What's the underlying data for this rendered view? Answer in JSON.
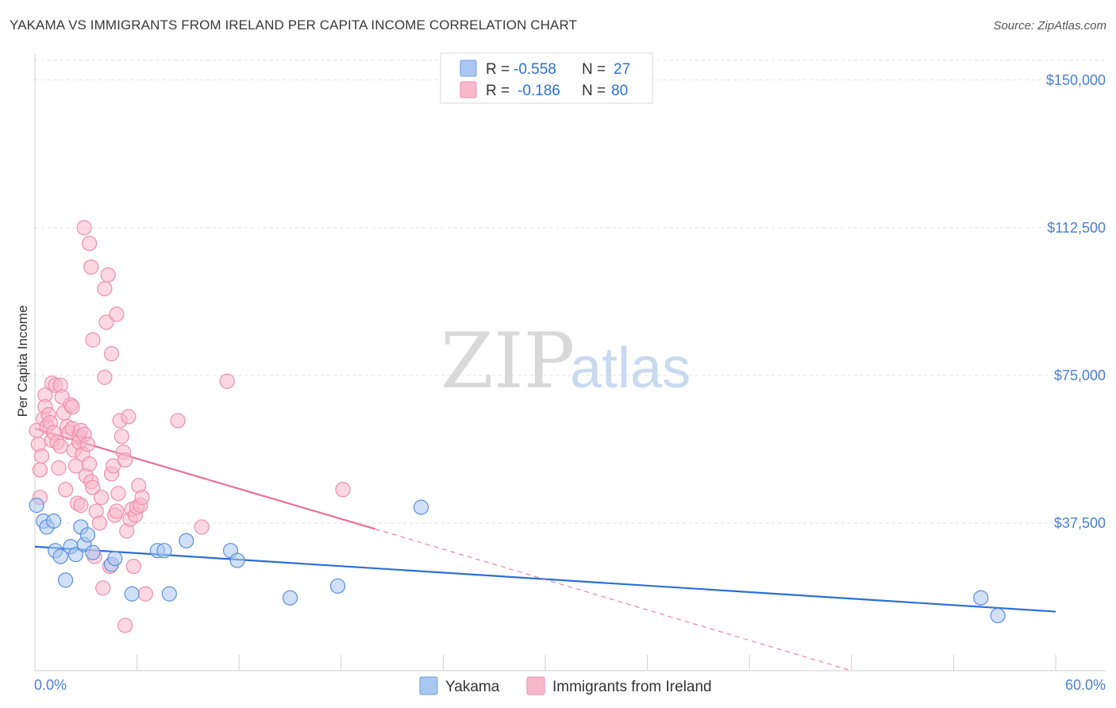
{
  "header": {
    "title": "YAKAMA VS IMMIGRANTS FROM IRELAND PER CAPITA INCOME CORRELATION CHART",
    "source": "Source: ZipAtlas.com"
  },
  "watermark": {
    "zip": "ZIP",
    "atlas": "atlas"
  },
  "legend": {
    "r_label": "R =",
    "n_label": "N =",
    "rows": [
      {
        "r": "-0.558",
        "n": "27",
        "color": "#a9c7f0",
        "stroke": "#6f9fe0"
      },
      {
        "r": "-0.186",
        "n": "80",
        "color": "#f7b8cb",
        "stroke": "#ee8fad"
      }
    ]
  },
  "chart_data": {
    "type": "scatter",
    "title": "YAKAMA VS IMMIGRANTS FROM IRELAND PER CAPITA INCOME CORRELATION CHART",
    "xlabel": "",
    "ylabel": "Per Capita Income",
    "xlim": [
      0,
      60
    ],
    "ylim": [
      0,
      155000
    ],
    "x_tick_labels": {
      "min": "0.0%",
      "max": "60.0%"
    },
    "y_ticks": [
      {
        "value": 37500,
        "label": "$37,500"
      },
      {
        "value": 75000,
        "label": "$75,000"
      },
      {
        "value": 112500,
        "label": "$112,500"
      },
      {
        "value": 150000,
        "label": "$150,000"
      }
    ],
    "grid": true,
    "series": [
      {
        "name": "Yakama",
        "color": "#a9c7f0",
        "stroke": "#5b8fdc",
        "line_color": "#2b6fd6",
        "trend": {
          "x0": 0,
          "y0": 31500,
          "x1": 60,
          "y1": 15000
        },
        "points": [
          [
            0.1,
            42000
          ],
          [
            0.5,
            38000
          ],
          [
            0.7,
            36500
          ],
          [
            1.1,
            38000
          ],
          [
            1.2,
            30500
          ],
          [
            1.5,
            29000
          ],
          [
            1.8,
            23000
          ],
          [
            2.1,
            31500
          ],
          [
            2.4,
            29500
          ],
          [
            2.7,
            36500
          ],
          [
            2.9,
            32000
          ],
          [
            3.1,
            34500
          ],
          [
            3.4,
            30000
          ],
          [
            4.5,
            27000
          ],
          [
            4.7,
            28500
          ],
          [
            5.7,
            19500
          ],
          [
            7.2,
            30500
          ],
          [
            7.6,
            30500
          ],
          [
            7.9,
            19500
          ],
          [
            8.9,
            33000
          ],
          [
            11.5,
            30500
          ],
          [
            11.9,
            28000
          ],
          [
            15.0,
            18500
          ],
          [
            17.8,
            21500
          ],
          [
            22.7,
            41500
          ],
          [
            55.6,
            18500
          ],
          [
            56.6,
            14000
          ]
        ]
      },
      {
        "name": "Immigrants from Ireland",
        "color": "#f7b8cb",
        "stroke": "#ee8fad",
        "line_color": "#e86f97",
        "trend": {
          "x0": 0,
          "y0": 61500,
          "x1": 20,
          "y1": 36000
        },
        "trend_dashed": {
          "x0": 20,
          "y0": 36000,
          "x1": 48,
          "y1": 0
        },
        "points": [
          [
            0.1,
            61000
          ],
          [
            0.2,
            57500
          ],
          [
            0.3,
            51000
          ],
          [
            0.3,
            44000
          ],
          [
            0.4,
            54500
          ],
          [
            0.5,
            64000
          ],
          [
            0.6,
            70000
          ],
          [
            0.6,
            67000
          ],
          [
            0.7,
            62000
          ],
          [
            0.8,
            65000
          ],
          [
            0.9,
            63000
          ],
          [
            1.0,
            58500
          ],
          [
            1.0,
            73000
          ],
          [
            1.1,
            60500
          ],
          [
            1.2,
            72500
          ],
          [
            1.3,
            58000
          ],
          [
            1.4,
            51500
          ],
          [
            1.5,
            57000
          ],
          [
            1.5,
            72500
          ],
          [
            1.6,
            69500
          ],
          [
            1.7,
            65500
          ],
          [
            1.8,
            46000
          ],
          [
            1.9,
            62000
          ],
          [
            2.0,
            60500
          ],
          [
            2.1,
            67500
          ],
          [
            2.2,
            61500
          ],
          [
            2.2,
            67000
          ],
          [
            2.3,
            56000
          ],
          [
            2.4,
            52000
          ],
          [
            2.5,
            42500
          ],
          [
            2.6,
            59500
          ],
          [
            2.6,
            58000
          ],
          [
            2.7,
            61000
          ],
          [
            2.7,
            42000
          ],
          [
            2.8,
            55000
          ],
          [
            2.9,
            60000
          ],
          [
            3.0,
            49500
          ],
          [
            3.1,
            57500
          ],
          [
            3.2,
            52500
          ],
          [
            3.3,
            48000
          ],
          [
            3.4,
            46500
          ],
          [
            3.5,
            29000
          ],
          [
            3.6,
            40500
          ],
          [
            3.8,
            37500
          ],
          [
            3.9,
            44000
          ],
          [
            4.0,
            21000
          ],
          [
            4.1,
            74500
          ],
          [
            4.2,
            88500
          ],
          [
            4.3,
            100500
          ],
          [
            4.4,
            26500
          ],
          [
            4.5,
            50000
          ],
          [
            4.6,
            52000
          ],
          [
            4.7,
            39500
          ],
          [
            4.8,
            40500
          ],
          [
            4.9,
            45000
          ],
          [
            5.0,
            63500
          ],
          [
            5.1,
            59500
          ],
          [
            5.2,
            55500
          ],
          [
            5.3,
            53500
          ],
          [
            5.4,
            35500
          ],
          [
            5.5,
            64500
          ],
          [
            5.6,
            38500
          ],
          [
            5.7,
            41000
          ],
          [
            5.9,
            39500
          ],
          [
            6.0,
            41500
          ],
          [
            6.1,
            47000
          ],
          [
            6.2,
            42000
          ],
          [
            6.3,
            44000
          ],
          [
            2.9,
            112500
          ],
          [
            3.2,
            108500
          ],
          [
            3.3,
            102500
          ],
          [
            4.1,
            97000
          ],
          [
            4.8,
            90500
          ],
          [
            3.4,
            84000
          ],
          [
            4.5,
            80500
          ],
          [
            5.8,
            26500
          ],
          [
            6.5,
            19500
          ],
          [
            5.3,
            11500
          ],
          [
            8.4,
            63500
          ],
          [
            9.8,
            36500
          ],
          [
            11.3,
            73500
          ],
          [
            18.1,
            46000
          ]
        ]
      }
    ]
  },
  "bottom_legend": [
    {
      "label": "Yakama",
      "color": "#a9c7f0",
      "stroke": "#6f9fe0"
    },
    {
      "label": "Immigrants from Ireland",
      "color": "#f7b8cb",
      "stroke": "#ee8fad"
    }
  ]
}
